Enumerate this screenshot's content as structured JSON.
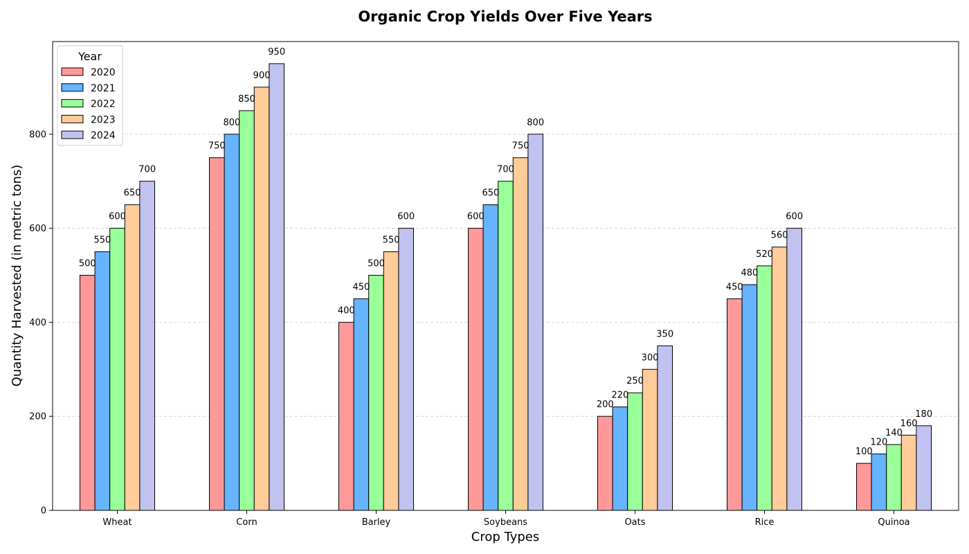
{
  "chart_data": {
    "type": "bar",
    "title": "Organic Crop Yields Over Five Years",
    "xlabel": "Crop Types",
    "ylabel": "Quantity Harvested (in metric tons)",
    "categories": [
      "Wheat",
      "Corn",
      "Barley",
      "Soybeans",
      "Oats",
      "Rice",
      "Quinoa"
    ],
    "series": [
      {
        "name": "2020",
        "color": "#ff9999",
        "values": [
          500,
          750,
          400,
          600,
          200,
          450,
          100
        ]
      },
      {
        "name": "2021",
        "color": "#66b3ff",
        "values": [
          550,
          800,
          450,
          650,
          220,
          480,
          120
        ]
      },
      {
        "name": "2022",
        "color": "#99ff99",
        "values": [
          600,
          850,
          500,
          700,
          250,
          520,
          140
        ]
      },
      {
        "name": "2023",
        "color": "#ffcc99",
        "values": [
          650,
          900,
          550,
          750,
          300,
          560,
          160
        ]
      },
      {
        "name": "2024",
        "color": "#c2c2f0",
        "values": [
          700,
          950,
          600,
          800,
          350,
          600,
          180
        ]
      }
    ],
    "ylim": [
      0,
      997
    ],
    "yticks": [
      0,
      200,
      400,
      600,
      800
    ],
    "grid": "horizontal dashed",
    "legend": {
      "title": "Year",
      "placement": "top-left"
    }
  }
}
